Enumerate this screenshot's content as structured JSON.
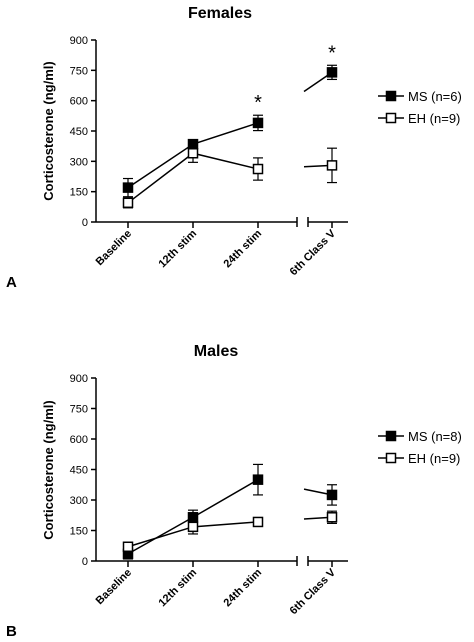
{
  "chart_data": [
    {
      "panel_label": "A",
      "type": "line",
      "title": "Females",
      "ylabel": "Corticosterone (ng/ml)",
      "xlabel": "",
      "ylim": [
        0,
        900
      ],
      "yticks": [
        0,
        150,
        300,
        450,
        600,
        750,
        900
      ],
      "categories": [
        "Baseline",
        "12th stim",
        "24th stim",
        "6th Class V"
      ],
      "axis_break_before_last": true,
      "series": [
        {
          "name": "MS (n=6)",
          "marker": "filled-square",
          "values": [
            170,
            385,
            490,
            740
          ],
          "errors": [
            45,
            20,
            38,
            35
          ]
        },
        {
          "name": "EH (n=9)",
          "marker": "open-square",
          "values": [
            95,
            340,
            262,
            280
          ],
          "errors": [
            25,
            45,
            55,
            85
          ]
        }
      ],
      "annotations": [
        {
          "text": "*",
          "category": "24th stim"
        },
        {
          "text": "*",
          "category": "6th Class V"
        }
      ],
      "legend_position": "right"
    },
    {
      "panel_label": "B",
      "type": "line",
      "title": "Males",
      "ylabel": "Corticosterone (ng/ml)",
      "xlabel": "",
      "ylim": [
        0,
        900
      ],
      "yticks": [
        0,
        150,
        300,
        450,
        600,
        750,
        900
      ],
      "categories": [
        "Baseline",
        "12th stim",
        "24th stim",
        "6th Class V"
      ],
      "axis_break_before_last": true,
      "series": [
        {
          "name": "MS (n=8)",
          "marker": "filled-square",
          "values": [
            35,
            215,
            400,
            325
          ],
          "errors": [
            25,
            35,
            75,
            50
          ]
        },
        {
          "name": "EH (n=9)",
          "marker": "open-square",
          "values": [
            70,
            168,
            192,
            215
          ],
          "errors": [
            22,
            35,
            20,
            30
          ]
        }
      ],
      "annotations": [],
      "legend_position": "right"
    }
  ]
}
